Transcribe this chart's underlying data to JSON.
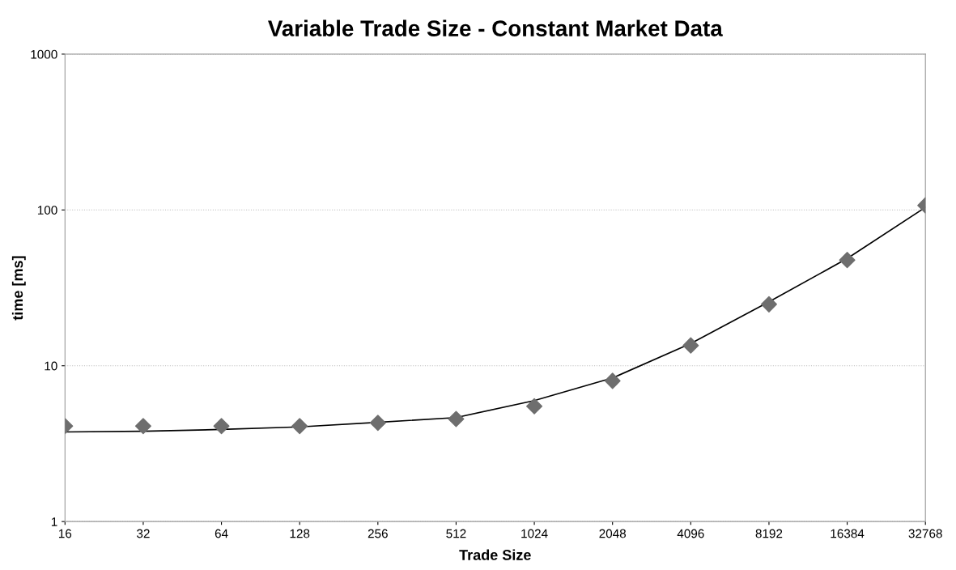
{
  "chart_data": {
    "type": "scatter",
    "title": "Variable Trade Size - Constant Market Data",
    "xlabel": "Trade Size",
    "ylabel": "time [ms]",
    "x": [
      16,
      32,
      64,
      128,
      256,
      512,
      1024,
      2048,
      4096,
      8192,
      16384,
      32768
    ],
    "series": [
      {
        "color": "#6e6e6e",
        "marker": "diamond",
        "values": [
          4.1,
          4.1,
          4.1,
          4.1,
          4.3,
          4.55,
          5.5,
          8.0,
          13.5,
          24.8,
          47.7,
          107
        ]
      },
      {
        "type": "line",
        "color": "#000000",
        "marker": "none",
        "line_style": "solid",
        "x": [
          16,
          32,
          64,
          128,
          256,
          512,
          1024,
          2048,
          4096,
          8192,
          16384,
          32768
        ],
        "values": [
          3.76,
          3.8,
          3.9,
          4.05,
          4.33,
          4.65,
          5.98,
          8.35,
          13.9,
          25.7,
          48.8,
          104
        ]
      }
    ],
    "log": "xy",
    "xlim": [
      16,
      32768
    ],
    "xticks": [
      16,
      32,
      64,
      128,
      256,
      512,
      1024,
      2048,
      4096,
      8192,
      16384,
      32768
    ],
    "ylim": [
      1,
      1000
    ],
    "yticks": [
      1,
      10,
      100,
      1000
    ],
    "grid": "y",
    "legend": false
  }
}
